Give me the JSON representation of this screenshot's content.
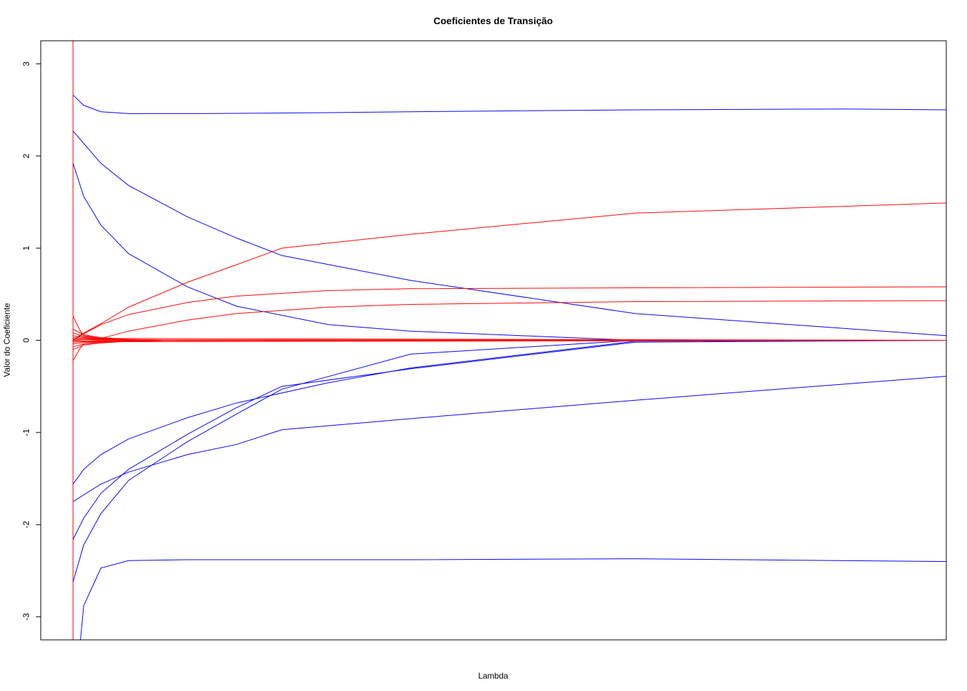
{
  "chart_data": {
    "type": "line",
    "title": "Coeficientes de Transição",
    "xlabel": "Lambda",
    "ylabel": "Valor do Coeficiente",
    "x_ticks_shown": false,
    "x_axis_ticks": [],
    "ylim": [
      -3.25,
      3.25
    ],
    "xlim": [
      -0.037,
      1.0
    ],
    "y_ticks": [
      3,
      2,
      1,
      0,
      -1,
      -2,
      -3
    ],
    "y_tick_labels": [
      "3",
      "2",
      "1",
      "0",
      "-1",
      "-2",
      "-3"
    ],
    "grid": false,
    "legend": "none",
    "colors": {
      "blue_series": "#0000ff",
      "red_series": "#ff0000",
      "frame": "#000000"
    },
    "vertical_reference_line": {
      "x": 0.0,
      "color": "#ff0000"
    },
    "series": [
      {
        "color": "#0000ff",
        "x": [
          0,
          0.0122,
          0.0319,
          0.0636,
          0.1477,
          0.2924,
          0.3864,
          0.6437,
          0.8831,
          1.0
        ],
        "y": [
          2.66,
          2.55,
          2.48,
          2.46,
          2.46,
          2.47,
          2.48,
          2.5,
          2.51,
          2.5
        ]
      },
      {
        "color": "#0000ff",
        "x": [
          0,
          0.0319,
          0.0636,
          0.1309,
          0.1872,
          0.2391,
          0.3864,
          0.6437,
          1.0
        ],
        "y": [
          2.27,
          1.92,
          1.68,
          1.34,
          1.11,
          0.92,
          0.65,
          0.29,
          0.05
        ]
      },
      {
        "color": "#0000ff",
        "x": [
          0,
          0.0122,
          0.0319,
          0.0636,
          0.1309,
          0.1872,
          0.2924,
          0.3864,
          0.6437,
          1.0
        ],
        "y": [
          1.92,
          1.56,
          1.25,
          0.94,
          0.58,
          0.37,
          0.17,
          0.1,
          0.0,
          0.0
        ]
      },
      {
        "color": "#0000ff",
        "x": [
          0,
          0.0122,
          0.0319,
          0.0636,
          0.1309,
          0.1872,
          0.2924,
          0.3864,
          0.6437,
          1.0
        ],
        "y": [
          -1.56,
          -1.4,
          -1.24,
          -1.07,
          -0.84,
          -0.68,
          -0.46,
          -0.3,
          -0.01,
          0.0
        ]
      },
      {
        "color": "#0000ff",
        "x": [
          0,
          0.0319,
          0.0636,
          0.1309,
          0.1872,
          0.2391,
          0.3864,
          0.6437,
          1.0
        ],
        "y": [
          -1.75,
          -1.56,
          -1.43,
          -1.24,
          -1.13,
          -0.97,
          -0.85,
          -0.65,
          -0.39
        ]
      },
      {
        "color": "#0000ff",
        "x": [
          0,
          0.0122,
          0.0319,
          0.0636,
          0.1309,
          0.1872,
          0.2391,
          0.3864,
          0.6437,
          1.0
        ],
        "y": [
          -2.16,
          -1.93,
          -1.66,
          -1.4,
          -1.02,
          -0.73,
          -0.5,
          -0.31,
          -0.02,
          0.0
        ]
      },
      {
        "color": "#0000ff",
        "x": [
          0,
          0.0122,
          0.0319,
          0.0636,
          0.1309,
          0.1872,
          0.2391,
          0.3864,
          0.6437,
          1.0
        ],
        "y": [
          -2.62,
          -2.22,
          -1.88,
          -1.52,
          -1.1,
          -0.8,
          -0.53,
          -0.15,
          0.0,
          0.0
        ]
      },
      {
        "color": "#0000ff",
        "x": [
          0.0085,
          0.0122,
          0.0319,
          0.0636,
          0.1309,
          0.3864,
          0.6437,
          1.0
        ],
        "y": [
          -3.25,
          -2.88,
          -2.47,
          -2.39,
          -2.38,
          -2.38,
          -2.37,
          -2.4
        ]
      },
      {
        "color": "#ff0000",
        "x": [
          0,
          0.0085,
          0.0319,
          0.0636,
          0.1309,
          0.1872,
          0.2391,
          0.3864,
          0.6437,
          1.0
        ],
        "y": [
          0.0,
          0.06,
          0.18,
          0.36,
          0.63,
          0.82,
          1.0,
          1.15,
          1.38,
          1.49
        ]
      },
      {
        "color": "#ff0000",
        "x": [
          0,
          0.0085,
          0.0319,
          0.0636,
          0.1309,
          0.1872,
          0.2924,
          0.3864,
          0.6437,
          1.0
        ],
        "y": [
          0.0,
          0.05,
          0.17,
          0.28,
          0.41,
          0.48,
          0.54,
          0.56,
          0.57,
          0.58
        ]
      },
      {
        "color": "#ff0000",
        "x": [
          0,
          0.0319,
          0.0636,
          0.1309,
          0.1872,
          0.2924,
          0.3864,
          0.6437,
          1.0
        ],
        "y": [
          0.0,
          0.02,
          0.1,
          0.22,
          0.29,
          0.36,
          0.39,
          0.42,
          0.43
        ]
      },
      {
        "color": "#ff0000",
        "x": [
          0,
          0.0122,
          0.0319,
          0.0636,
          0.1309,
          0.3864,
          1.0
        ],
        "y": [
          0.12,
          0.06,
          0.03,
          0.01,
          0.0,
          0.0,
          0.0
        ]
      },
      {
        "color": "#ff0000",
        "x": [
          0,
          0.0122,
          0.0319,
          0.0636,
          0.1309,
          0.3864,
          1.0
        ],
        "y": [
          -0.1,
          -0.05,
          -0.03,
          -0.01,
          0.0,
          0.0,
          0.0
        ]
      },
      {
        "color": "#ff0000",
        "x": [
          0,
          0.0122,
          0.0319,
          0.0636,
          0.1309,
          1.0
        ],
        "y": [
          0.08,
          0.04,
          0.02,
          0.01,
          0.0,
          0.0
        ]
      },
      {
        "color": "#ff0000",
        "x": [
          0,
          0.0122,
          0.0319,
          0.0636,
          0.1309,
          1.0
        ],
        "y": [
          -0.07,
          -0.04,
          -0.02,
          -0.01,
          0.0,
          0.0
        ]
      },
      {
        "color": "#ff0000",
        "x": [
          0,
          0.0122,
          0.0319,
          0.0636,
          0.1309,
          1.0
        ],
        "y": [
          0.05,
          0.03,
          0.015,
          0.005,
          0.0,
          0.0
        ]
      },
      {
        "color": "#ff0000",
        "x": [
          0,
          0.0122,
          0.0319,
          0.0636,
          0.1309,
          1.0
        ],
        "y": [
          -0.04,
          -0.025,
          -0.012,
          -0.005,
          0.0,
          0.0
        ]
      },
      {
        "color": "#ff0000",
        "x": [
          0,
          0.0122,
          0.0319,
          0.0636,
          1.0
        ],
        "y": [
          0.03,
          0.02,
          0.01,
          0.004,
          0.0
        ]
      },
      {
        "color": "#ff0000",
        "x": [
          0,
          0.0122,
          0.0319,
          0.0636,
          1.0
        ],
        "y": [
          -0.02,
          -0.015,
          -0.008,
          -0.003,
          0.0
        ]
      },
      {
        "color": "#ff0000",
        "x": [
          0,
          0.0085,
          0.0122,
          0.0319,
          1.0
        ],
        "y": [
          0.26,
          0.1,
          0.05,
          0.02,
          0.0
        ]
      },
      {
        "color": "#ff0000",
        "x": [
          0,
          0.0085,
          0.0122,
          0.0319,
          1.0
        ],
        "y": [
          -0.22,
          -0.08,
          -0.04,
          -0.015,
          0.0
        ]
      },
      {
        "color": "#ff0000",
        "x": [
          0,
          0.0122,
          0.0319,
          1.0
        ],
        "y": [
          0.015,
          0.01,
          0.005,
          0.0
        ]
      },
      {
        "color": "#ff0000",
        "x": [
          0,
          0.0122,
          0.0319,
          1.0
        ],
        "y": [
          -0.01,
          -0.006,
          -0.003,
          0.0
        ]
      }
    ]
  }
}
